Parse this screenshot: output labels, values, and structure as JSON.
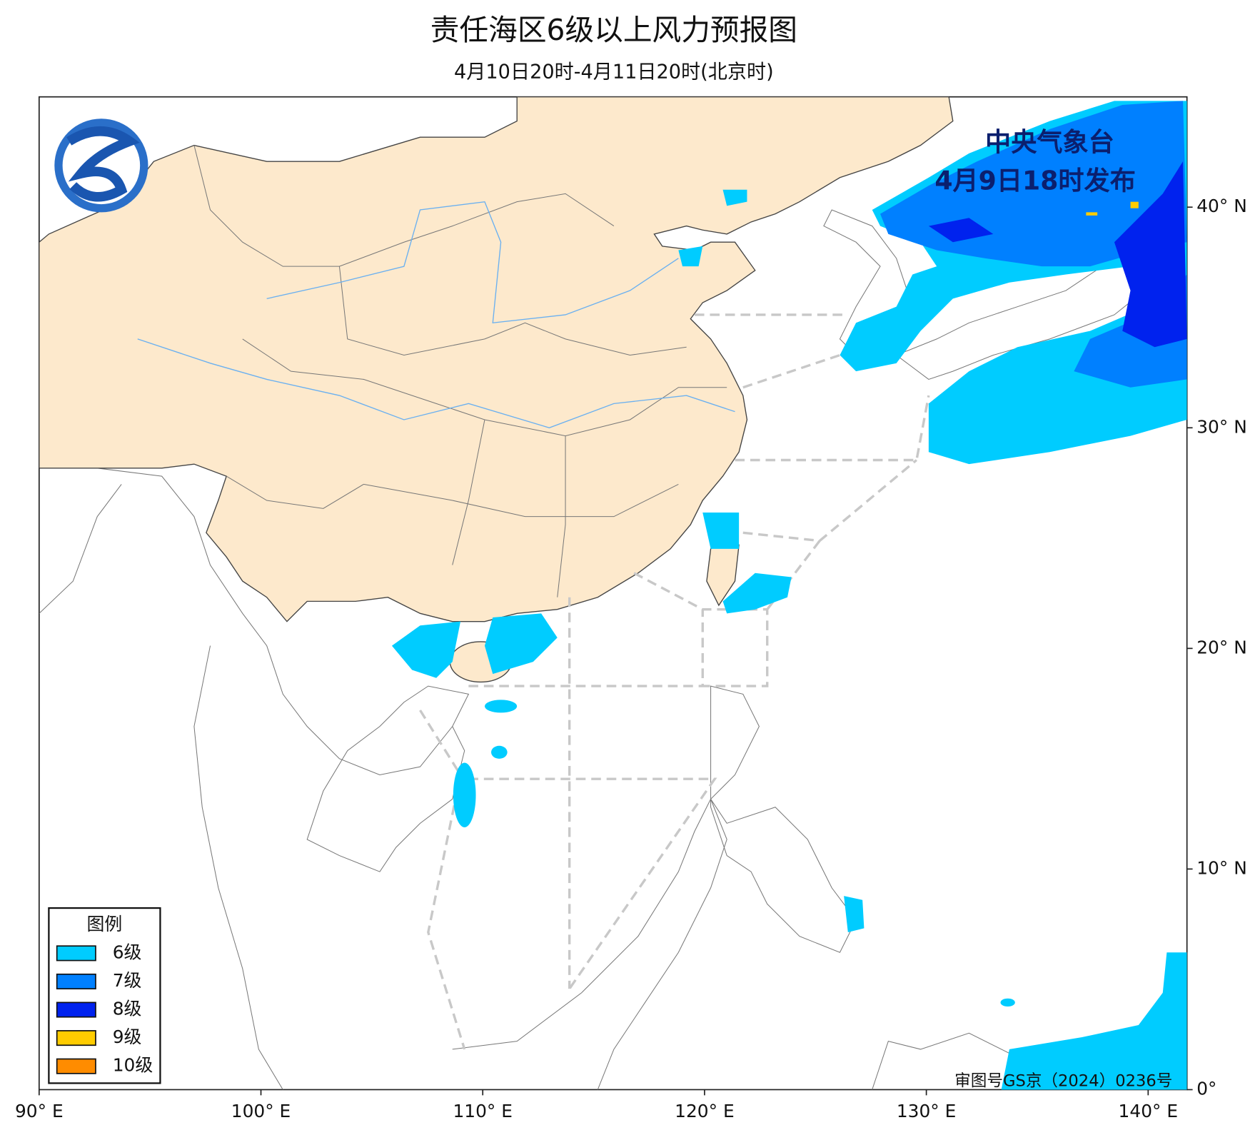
{
  "header": {
    "title": "责任海区6级以上风力预报图",
    "subtitle": "4月10日20时-4月11日20时(北京时)"
  },
  "issuer": {
    "agency": "中央气象台",
    "issued": "4月9日18时发布"
  },
  "legend": {
    "title": "图例",
    "items": [
      {
        "label": "6级",
        "color": "#00ccff"
      },
      {
        "label": "7级",
        "color": "#0080ff"
      },
      {
        "label": "8级",
        "color": "#0022ee"
      },
      {
        "label": "9级",
        "color": "#ffcc00"
      },
      {
        "label": "10级",
        "color": "#ff8c00"
      }
    ]
  },
  "map": {
    "xlim": [
      90,
      141.75
    ],
    "ylim": [
      0,
      45
    ],
    "xticks": [
      {
        "value": 90,
        "label": "90° E"
      },
      {
        "value": 100,
        "label": "100° E"
      },
      {
        "value": 110,
        "label": "110° E"
      },
      {
        "value": 120,
        "label": "120° E"
      },
      {
        "value": 130,
        "label": "130° E"
      },
      {
        "value": 140,
        "label": "140° E"
      }
    ],
    "yticks": [
      {
        "value": 0,
        "label": "0°"
      },
      {
        "value": 10,
        "label": "10° N"
      },
      {
        "value": 20,
        "label": "20° N"
      },
      {
        "value": 30,
        "label": "30° N"
      },
      {
        "value": 40,
        "label": "40° N"
      }
    ]
  },
  "footer": {
    "approval": "审图号GS京（2024）0236号"
  }
}
